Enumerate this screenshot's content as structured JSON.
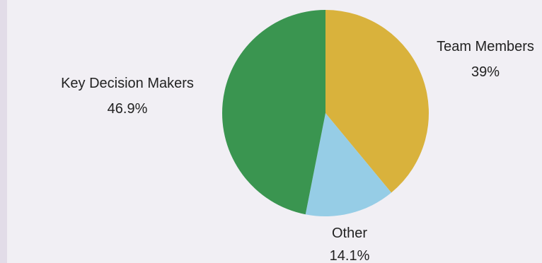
{
  "chart_data": {
    "type": "pie",
    "title": "",
    "slices": [
      {
        "label": "Team Members",
        "value": 39,
        "value_label": "39%",
        "color": "#d9b23c"
      },
      {
        "label": "Other",
        "value": 14.1,
        "value_label": "14.1%",
        "color": "#96cde6"
      },
      {
        "label": "Key Decision Makers",
        "value": 46.9,
        "value_label": "46.9%",
        "color": "#3a9550"
      }
    ],
    "start": "top",
    "direction": "clockwise",
    "legend": "none"
  }
}
